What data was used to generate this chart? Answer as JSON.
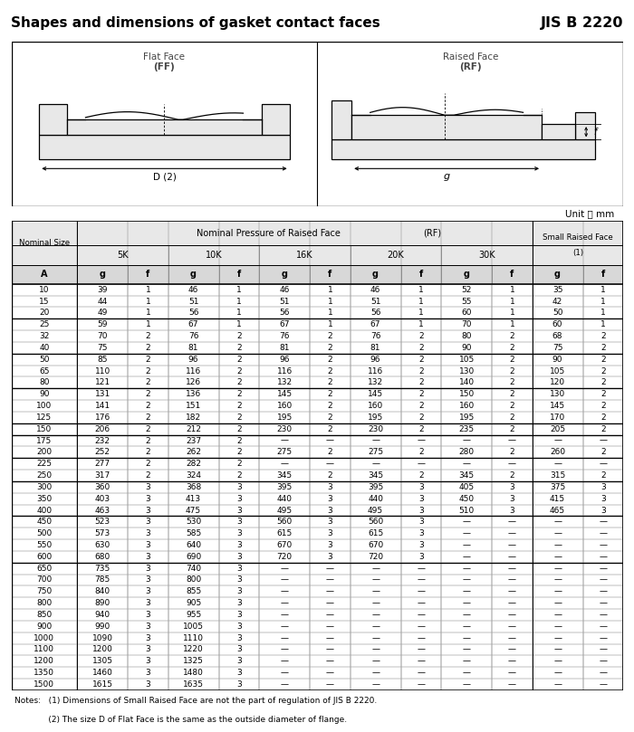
{
  "title": "Shapes and dimensions of gasket contact faces",
  "standard": "JIS B 2220",
  "unit_label": "Unit ： mm",
  "col_labels": [
    "A",
    "g",
    "f",
    "g",
    "f",
    "g",
    "f",
    "g",
    "f",
    "g",
    "f",
    "g",
    "f"
  ],
  "pressure_groups": [
    {
      "label": "5K",
      "cols": [
        1,
        2
      ]
    },
    {
      "label": "10K",
      "cols": [
        3,
        4
      ]
    },
    {
      "label": "16K",
      "cols": [
        5,
        6
      ]
    },
    {
      "label": "20K",
      "cols": [
        7,
        8
      ]
    },
    {
      "label": "30K",
      "cols": [
        9,
        10
      ]
    }
  ],
  "table_data": [
    [
      "10",
      "39",
      "1",
      "46",
      "1",
      "46",
      "1",
      "46",
      "1",
      "52",
      "1",
      "35",
      "1"
    ],
    [
      "15",
      "44",
      "1",
      "51",
      "1",
      "51",
      "1",
      "51",
      "1",
      "55",
      "1",
      "42",
      "1"
    ],
    [
      "20",
      "49",
      "1",
      "56",
      "1",
      "56",
      "1",
      "56",
      "1",
      "60",
      "1",
      "50",
      "1"
    ],
    [
      "25",
      "59",
      "1",
      "67",
      "1",
      "67",
      "1",
      "67",
      "1",
      "70",
      "1",
      "60",
      "1"
    ],
    [
      "32",
      "70",
      "2",
      "76",
      "2",
      "76",
      "2",
      "76",
      "2",
      "80",
      "2",
      "68",
      "2"
    ],
    [
      "40",
      "75",
      "2",
      "81",
      "2",
      "81",
      "2",
      "81",
      "2",
      "90",
      "2",
      "75",
      "2"
    ],
    [
      "50",
      "85",
      "2",
      "96",
      "2",
      "96",
      "2",
      "96",
      "2",
      "105",
      "2",
      "90",
      "2"
    ],
    [
      "65",
      "110",
      "2",
      "116",
      "2",
      "116",
      "2",
      "116",
      "2",
      "130",
      "2",
      "105",
      "2"
    ],
    [
      "80",
      "121",
      "2",
      "126",
      "2",
      "132",
      "2",
      "132",
      "2",
      "140",
      "2",
      "120",
      "2"
    ],
    [
      "90",
      "131",
      "2",
      "136",
      "2",
      "145",
      "2",
      "145",
      "2",
      "150",
      "2",
      "130",
      "2"
    ],
    [
      "100",
      "141",
      "2",
      "151",
      "2",
      "160",
      "2",
      "160",
      "2",
      "160",
      "2",
      "145",
      "2"
    ],
    [
      "125",
      "176",
      "2",
      "182",
      "2",
      "195",
      "2",
      "195",
      "2",
      "195",
      "2",
      "170",
      "2"
    ],
    [
      "150",
      "206",
      "2",
      "212",
      "2",
      "230",
      "2",
      "230",
      "2",
      "235",
      "2",
      "205",
      "2"
    ],
    [
      "175",
      "232",
      "2",
      "237",
      "2",
      "—",
      "—",
      "—",
      "—",
      "—",
      "—",
      "—",
      "—"
    ],
    [
      "200",
      "252",
      "2",
      "262",
      "2",
      "275",
      "2",
      "275",
      "2",
      "280",
      "2",
      "260",
      "2"
    ],
    [
      "225",
      "277",
      "2",
      "282",
      "2",
      "—",
      "—",
      "—",
      "—",
      "—",
      "—",
      "—",
      "—"
    ],
    [
      "250",
      "317",
      "2",
      "324",
      "2",
      "345",
      "2",
      "345",
      "2",
      "345",
      "2",
      "315",
      "2"
    ],
    [
      "300",
      "360",
      "3",
      "368",
      "3",
      "395",
      "3",
      "395",
      "3",
      "405",
      "3",
      "375",
      "3"
    ],
    [
      "350",
      "403",
      "3",
      "413",
      "3",
      "440",
      "3",
      "440",
      "3",
      "450",
      "3",
      "415",
      "3"
    ],
    [
      "400",
      "463",
      "3",
      "475",
      "3",
      "495",
      "3",
      "495",
      "3",
      "510",
      "3",
      "465",
      "3"
    ],
    [
      "450",
      "523",
      "3",
      "530",
      "3",
      "560",
      "3",
      "560",
      "3",
      "—",
      "—",
      "—",
      "—"
    ],
    [
      "500",
      "573",
      "3",
      "585",
      "3",
      "615",
      "3",
      "615",
      "3",
      "—",
      "—",
      "—",
      "—"
    ],
    [
      "550",
      "630",
      "3",
      "640",
      "3",
      "670",
      "3",
      "670",
      "3",
      "—",
      "—",
      "—",
      "—"
    ],
    [
      "600",
      "680",
      "3",
      "690",
      "3",
      "720",
      "3",
      "720",
      "3",
      "—",
      "—",
      "—",
      "—"
    ],
    [
      "650",
      "735",
      "3",
      "740",
      "3",
      "—",
      "—",
      "—",
      "—",
      "—",
      "—",
      "—",
      "—"
    ],
    [
      "700",
      "785",
      "3",
      "800",
      "3",
      "—",
      "—",
      "—",
      "—",
      "—",
      "—",
      "—",
      "—"
    ],
    [
      "750",
      "840",
      "3",
      "855",
      "3",
      "—",
      "—",
      "—",
      "—",
      "—",
      "—",
      "—",
      "—"
    ],
    [
      "800",
      "890",
      "3",
      "905",
      "3",
      "—",
      "—",
      "—",
      "—",
      "—",
      "—",
      "—",
      "—"
    ],
    [
      "850",
      "940",
      "3",
      "955",
      "3",
      "—",
      "—",
      "—",
      "—",
      "—",
      "—",
      "—",
      "—"
    ],
    [
      "900",
      "990",
      "3",
      "1005",
      "3",
      "—",
      "—",
      "—",
      "—",
      "—",
      "—",
      "—",
      "—"
    ],
    [
      "1000",
      "1090",
      "3",
      "1110",
      "3",
      "—",
      "—",
      "—",
      "—",
      "—",
      "—",
      "—",
      "—"
    ],
    [
      "1100",
      "1200",
      "3",
      "1220",
      "3",
      "—",
      "—",
      "—",
      "—",
      "—",
      "—",
      "—",
      "—"
    ],
    [
      "1200",
      "1305",
      "3",
      "1325",
      "3",
      "—",
      "—",
      "—",
      "—",
      "—",
      "—",
      "—",
      "—"
    ],
    [
      "1350",
      "1460",
      "3",
      "1480",
      "3",
      "—",
      "—",
      "—",
      "—",
      "—",
      "—",
      "—",
      "—"
    ],
    [
      "1500",
      "1615",
      "3",
      "1635",
      "3",
      "—",
      "—",
      "—",
      "—",
      "—",
      "—",
      "—",
      "—"
    ]
  ],
  "group_separators": [
    3,
    6,
    9,
    12,
    13,
    15,
    17,
    20,
    24
  ],
  "notes": [
    "Notes:   (1) Dimensions of Small Raised Face are not the part of regulation of JIS B 2220.",
    "             (2) The size D of Flat Face is the same as the outside diameter of flange."
  ],
  "bg_color": "#ffffff",
  "header_bg": "#e8e8e8",
  "col_header_bg": "#d8d8d8",
  "grid_color": "#888888",
  "text_color": "#000000",
  "border_color": "#000000"
}
